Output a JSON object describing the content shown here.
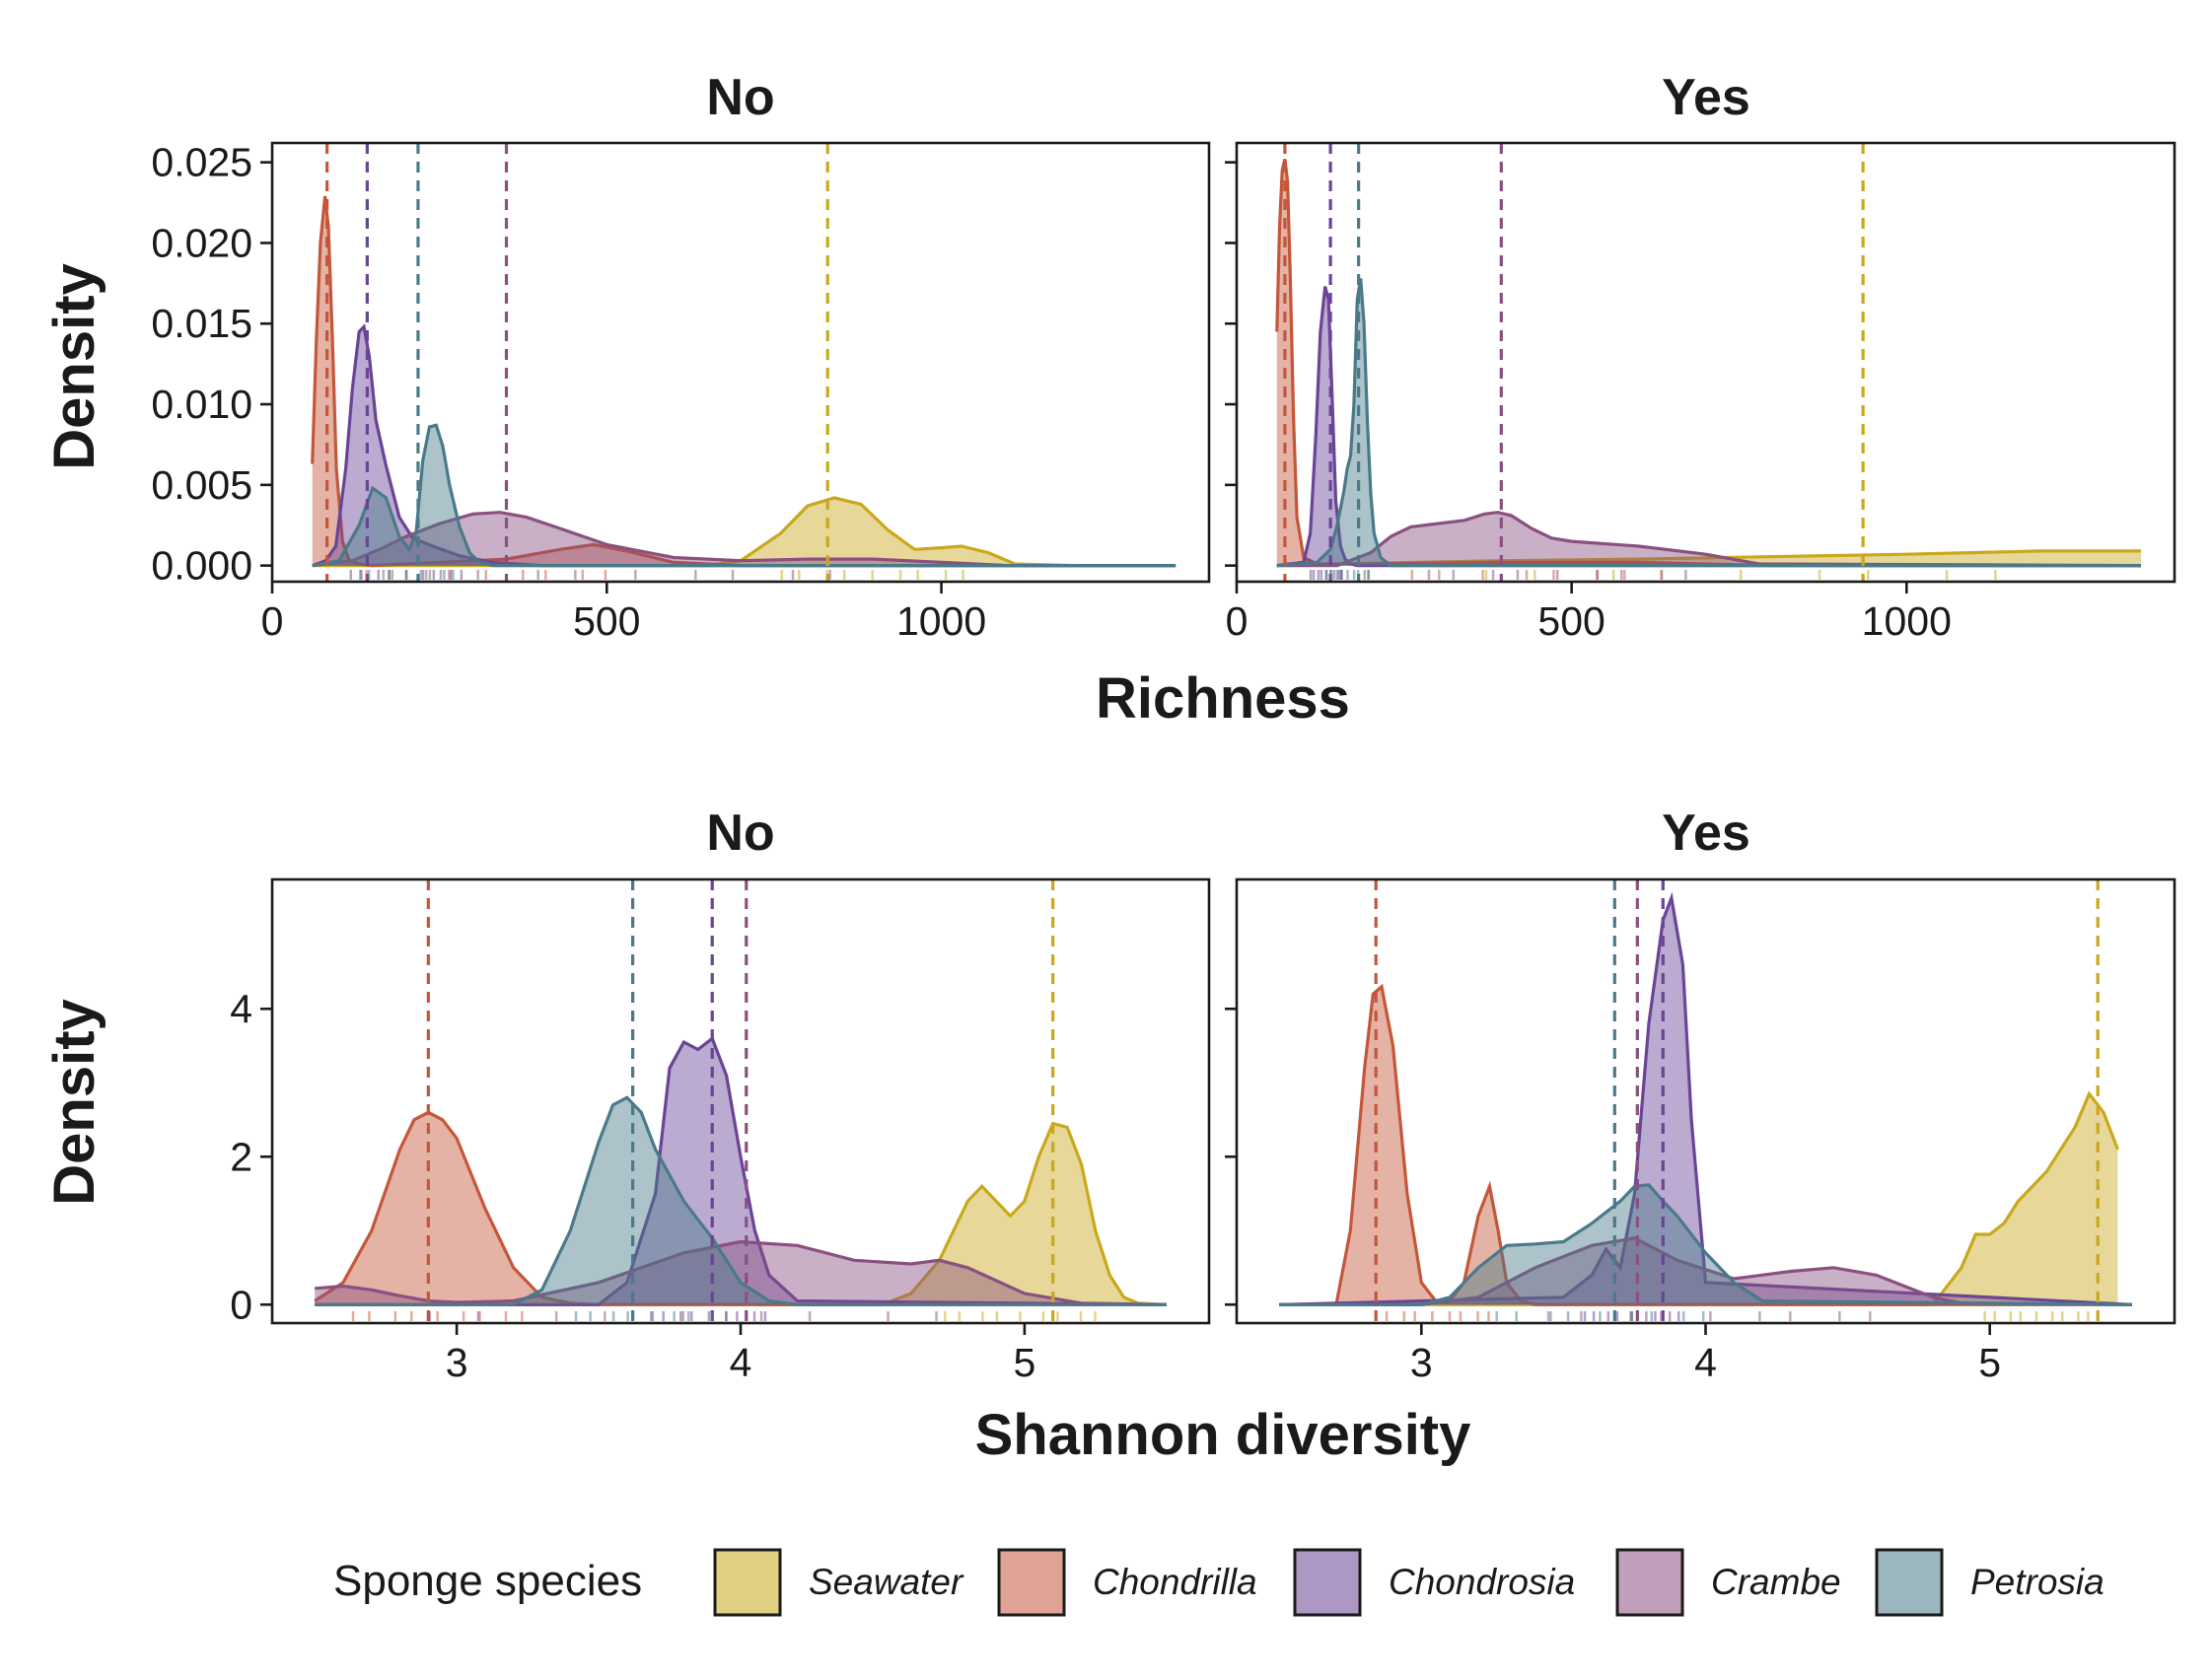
{
  "colors": {
    "Seawater": "#C9A81C",
    "Chondrilla": "#C4573A",
    "Chondrosia": "#6A4496",
    "Crambe": "#8A5080",
    "Petrosia": "#4A7A8A"
  },
  "legend": {
    "title": "Sponge species",
    "entries": [
      "Seawater",
      "Chondrilla",
      "Chondrosia",
      "Crambe",
      "Petrosia"
    ],
    "position": "bottom"
  },
  "chart_data": [
    {
      "type": "area",
      "panel": "Richness",
      "xlabel": "Richness",
      "ylabel": "Density",
      "xlim": [
        0,
        1400
      ],
      "ylim": [
        -0.001,
        0.0262
      ],
      "xticks": [
        0,
        500,
        1000
      ],
      "yticks": [
        0,
        0.005,
        0.01,
        0.015,
        0.02,
        0.025
      ],
      "ytick_labels": [
        "0.000",
        "0.005",
        "0.010",
        "0.015",
        "0.020",
        "0.025"
      ],
      "facets": [
        {
          "label": "No",
          "series": [
            {
              "name": "Seawater",
              "mean": 830,
              "x": [
                60,
                650,
                700,
                760,
                800,
                840,
                880,
                920,
                960,
                1000,
                1030,
                1070,
                1110,
                1200,
                1350
              ],
              "y": [
                0,
                0,
                0.0003,
                0.002,
                0.0037,
                0.0042,
                0.0038,
                0.0022,
                0.001,
                0.0011,
                0.0012,
                0.0008,
                0.0001,
                0,
                0
              ]
            },
            {
              "name": "Chondrilla",
              "mean": 82,
              "x": [
                60,
                66,
                72,
                79,
                84,
                90,
                96,
                105,
                115,
                130,
                150,
                250,
                350,
                430,
                480,
                530,
                600,
                700,
                1350
              ],
              "y": [
                0.0063,
                0.014,
                0.02,
                0.0229,
                0.021,
                0.014,
                0.006,
                0.0015,
                0.0003,
                0.0001,
                0,
                0.0002,
                0.0004,
                0.001,
                0.0013,
                0.0009,
                0.0002,
                0,
                0
              ]
            },
            {
              "name": "Chondrosia",
              "mean": 142,
              "x": [
                60,
                80,
                95,
                110,
                120,
                130,
                137,
                145,
                155,
                170,
                190,
                210,
                240,
                280,
                330,
                400,
                1350
              ],
              "y": [
                0,
                0.0003,
                0.0012,
                0.006,
                0.011,
                0.0145,
                0.0148,
                0.013,
                0.009,
                0.0062,
                0.003,
                0.0017,
                0.0012,
                0.0006,
                0.0002,
                0,
                0
              ]
            },
            {
              "name": "Crambe",
              "mean": 350,
              "x": [
                60,
                120,
                160,
                200,
                250,
                300,
                340,
                380,
                430,
                500,
                600,
                700,
                800,
                900,
                1000,
                1100,
                1350
              ],
              "y": [
                0,
                0.0003,
                0.001,
                0.0018,
                0.0026,
                0.0032,
                0.0033,
                0.003,
                0.0023,
                0.0013,
                0.0005,
                0.0003,
                0.0004,
                0.0004,
                0.0002,
                0,
                0
              ]
            },
            {
              "name": "Petrosia",
              "mean": 218,
              "x": [
                60,
                100,
                130,
                150,
                170,
                190,
                205,
                215,
                225,
                235,
                245,
                255,
                265,
                280,
                295,
                310,
                330,
                1350
              ],
              "y": [
                0,
                0.0003,
                0.0025,
                0.0048,
                0.0042,
                0.0018,
                0.001,
                0.002,
                0.0065,
                0.0086,
                0.0087,
                0.0074,
                0.005,
                0.0024,
                0.0008,
                0.0002,
                0,
                0
              ]
            }
          ]
        },
        {
          "label": "Yes",
          "series": [
            {
              "name": "Seawater",
              "mean": 935,
              "x": [
                60,
                200,
                400,
                600,
                800,
                1000,
                1200,
                1350
              ],
              "y": [
                0,
                0.00015,
                0.0003,
                0.0004,
                0.00055,
                0.0007,
                0.0009,
                0.0009
              ]
            },
            {
              "name": "Chondrilla",
              "mean": 72,
              "x": [
                60,
                64,
                68,
                72,
                76,
                80,
                85,
                90,
                100,
                120,
                200,
                400,
                600,
                700,
                800,
                1350
              ],
              "y": [
                0.0145,
                0.021,
                0.0245,
                0.0252,
                0.0238,
                0.018,
                0.009,
                0.003,
                0.0005,
                0.0001,
                0.0001,
                0.0002,
                0.0002,
                0.0001,
                0,
                0
              ]
            },
            {
              "name": "Chondrosia",
              "mean": 140,
              "x": [
                60,
                100,
                110,
                118,
                125,
                132,
                137,
                142,
                148,
                155,
                162,
                170,
                180,
                200,
                1350
              ],
              "y": [
                0,
                0.0002,
                0.002,
                0.008,
                0.0145,
                0.0173,
                0.0165,
                0.011,
                0.004,
                0.0012,
                0.0004,
                0.0001,
                0,
                0,
                0
              ]
            },
            {
              "name": "Crambe",
              "mean": 395,
              "x": [
                60,
                150,
                200,
                230,
                260,
                300,
                340,
                370,
                390,
                410,
                440,
                470,
                500,
                600,
                700,
                780,
                1350
              ],
              "y": [
                0,
                0,
                0.0008,
                0.0018,
                0.0024,
                0.0026,
                0.0028,
                0.0032,
                0.0033,
                0.0031,
                0.0023,
                0.0017,
                0.0015,
                0.0012,
                0.0007,
                0.0001,
                0
              ]
            },
            {
              "name": "Petrosia",
              "mean": 182,
              "x": [
                60,
                120,
                140,
                150,
                160,
                165,
                170,
                175,
                180,
                185,
                190,
                195,
                200,
                205,
                215,
                230,
                1350
              ],
              "y": [
                0,
                0.0002,
                0.001,
                0.0025,
                0.0046,
                0.006,
                0.0068,
                0.01,
                0.0165,
                0.0178,
                0.015,
                0.009,
                0.0045,
                0.002,
                0.0005,
                0,
                0
              ]
            }
          ]
        }
      ]
    },
    {
      "type": "area",
      "panel": "Shannon diversity",
      "xlabel": "Shannon diversity",
      "ylabel": "Density",
      "xlim": [
        2.35,
        5.65
      ],
      "ylim": [
        -0.25,
        5.75
      ],
      "xticks": [
        3,
        4,
        5
      ],
      "yticks": [
        0,
        2,
        4
      ],
      "facets": [
        {
          "label": "No",
          "series": [
            {
              "name": "Seawater",
              "mean": 5.1,
              "x": [
                2.5,
                4.5,
                4.6,
                4.7,
                4.8,
                4.85,
                4.9,
                4.95,
                5.0,
                5.05,
                5.1,
                5.15,
                5.2,
                5.25,
                5.3,
                5.35,
                5.4,
                5.5
              ],
              "y": [
                0,
                0,
                0.15,
                0.6,
                1.4,
                1.6,
                1.4,
                1.2,
                1.4,
                2.0,
                2.45,
                2.4,
                1.9,
                1.0,
                0.4,
                0.1,
                0.02,
                0
              ]
            },
            {
              "name": "Chondrilla",
              "mean": 2.9,
              "x": [
                2.5,
                2.6,
                2.7,
                2.8,
                2.85,
                2.9,
                2.95,
                3.0,
                3.1,
                3.2,
                3.3,
                3.4,
                3.5,
                5.5
              ],
              "y": [
                0.05,
                0.3,
                1.0,
                2.1,
                2.5,
                2.6,
                2.5,
                2.25,
                1.3,
                0.5,
                0.1,
                0.02,
                0,
                0
              ]
            },
            {
              "name": "Chondrosia",
              "mean": 3.9,
              "x": [
                2.5,
                3.5,
                3.6,
                3.7,
                3.75,
                3.8,
                3.85,
                3.9,
                3.95,
                4.0,
                4.05,
                4.1,
                4.2,
                5.5
              ],
              "y": [
                0,
                0,
                0.3,
                1.5,
                3.2,
                3.55,
                3.45,
                3.6,
                3.1,
                2.0,
                1.0,
                0.4,
                0.05,
                0
              ]
            },
            {
              "name": "Crambe",
              "mean": 4.02,
              "x": [
                2.5,
                2.6,
                2.7,
                2.8,
                2.9,
                3.0,
                3.2,
                3.5,
                3.8,
                4.0,
                4.2,
                4.4,
                4.6,
                4.7,
                4.8,
                5.0,
                5.2,
                5.5
              ],
              "y": [
                0.22,
                0.25,
                0.2,
                0.12,
                0.05,
                0.03,
                0.05,
                0.3,
                0.7,
                0.85,
                0.8,
                0.6,
                0.55,
                0.6,
                0.5,
                0.15,
                0.02,
                0
              ]
            },
            {
              "name": "Petrosia",
              "mean": 3.62,
              "x": [
                2.5,
                3.2,
                3.3,
                3.4,
                3.5,
                3.55,
                3.6,
                3.65,
                3.7,
                3.8,
                3.9,
                4.0,
                4.1,
                4.2,
                5.5
              ],
              "y": [
                0,
                0,
                0.2,
                1.0,
                2.2,
                2.7,
                2.8,
                2.6,
                2.1,
                1.4,
                0.9,
                0.3,
                0.05,
                0,
                0
              ]
            }
          ]
        },
        {
          "label": "Yes",
          "series": [
            {
              "name": "Seawater",
              "mean": 5.38,
              "x": [
                2.5,
                4.8,
                4.9,
                4.95,
                5.0,
                5.05,
                5.1,
                5.2,
                5.3,
                5.35,
                5.4,
                5.45
              ],
              "y": [
                0,
                0,
                0.5,
                0.95,
                0.95,
                1.1,
                1.4,
                1.8,
                2.4,
                2.85,
                2.6,
                2.1
              ]
            },
            {
              "name": "Chondrilla",
              "mean": 2.84,
              "x": [
                2.5,
                2.7,
                2.75,
                2.8,
                2.83,
                2.86,
                2.9,
                2.95,
                3.0,
                3.05,
                3.1,
                3.15,
                3.2,
                3.24,
                3.27,
                3.3,
                3.35,
                3.4,
                5.5
              ],
              "y": [
                0,
                0,
                1.0,
                3.2,
                4.2,
                4.3,
                3.5,
                1.5,
                0.3,
                0.05,
                0.05,
                0.3,
                1.2,
                1.6,
                1.0,
                0.3,
                0.05,
                0,
                0
              ]
            },
            {
              "name": "Chondrosia",
              "mean": 3.85,
              "x": [
                2.5,
                3.5,
                3.6,
                3.65,
                3.7,
                3.75,
                3.8,
                3.85,
                3.88,
                3.92,
                3.95,
                4.0,
                5.5
              ],
              "y": [
                0,
                0.1,
                0.4,
                0.75,
                0.5,
                1.5,
                3.8,
                5.2,
                5.5,
                4.6,
                2.5,
                0.3,
                0
              ]
            },
            {
              "name": "Crambe",
              "mean": 3.76,
              "x": [
                2.5,
                3.0,
                3.2,
                3.4,
                3.6,
                3.75,
                3.9,
                4.1,
                4.3,
                4.45,
                4.6,
                4.8,
                4.9,
                5.5
              ],
              "y": [
                0,
                0,
                0.1,
                0.5,
                0.8,
                0.9,
                0.6,
                0.35,
                0.45,
                0.5,
                0.4,
                0.1,
                0.02,
                0
              ]
            },
            {
              "name": "Petrosia",
              "mean": 3.68,
              "x": [
                2.5,
                3.0,
                3.1,
                3.2,
                3.3,
                3.4,
                3.5,
                3.6,
                3.7,
                3.75,
                3.8,
                3.85,
                3.9,
                4.0,
                4.1,
                4.2,
                5.5
              ],
              "y": [
                0,
                0,
                0.1,
                0.5,
                0.8,
                0.82,
                0.85,
                1.1,
                1.4,
                1.6,
                1.62,
                1.4,
                1.2,
                0.7,
                0.3,
                0.05,
                0
              ]
            }
          ]
        }
      ]
    }
  ]
}
